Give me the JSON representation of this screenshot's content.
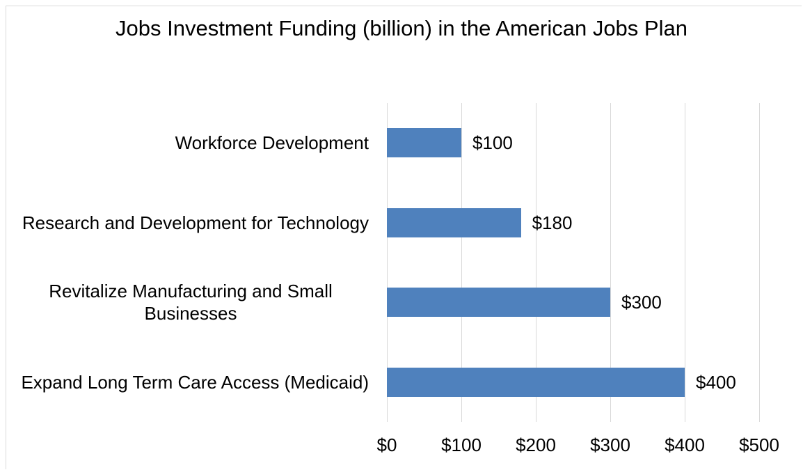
{
  "chart_data": {
    "type": "bar",
    "orientation": "horizontal",
    "title": "Jobs Investment Funding (billion) in the American Jobs Plan",
    "categories": [
      "Workforce Development",
      "Research and Development for Technology",
      "Revitalize Manufacturing and Small Businesses",
      "Expand Long Term Care Access (Medicaid)"
    ],
    "values": [
      100,
      180,
      300,
      400
    ],
    "value_labels": [
      "$100",
      "$180",
      "$300",
      "$400"
    ],
    "color": "#4f81bd",
    "xlim": [
      0,
      500
    ],
    "xticks": [
      {
        "value": 0,
        "label": "$0"
      },
      {
        "value": 100,
        "label": "$100"
      },
      {
        "value": 200,
        "label": "$200"
      },
      {
        "value": 300,
        "label": "$300"
      },
      {
        "value": 400,
        "label": "$400"
      },
      {
        "value": 500,
        "label": "$500"
      }
    ],
    "grid": true
  }
}
